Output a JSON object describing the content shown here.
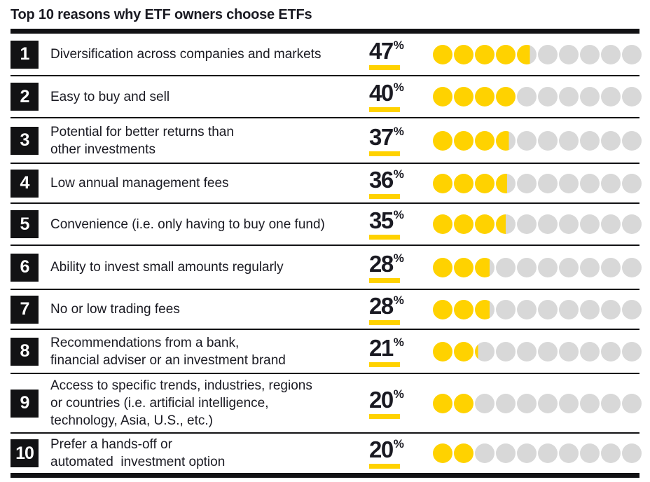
{
  "title": "Top 10 reasons why ETF owners choose ETFs",
  "unit": "%",
  "colors": {
    "accent_yellow": "#FFD200",
    "dot_gray": "#D8D8D8",
    "ink_black": "#121214",
    "text_black": "#1A1A22"
  },
  "gauge": {
    "dots_total": 10,
    "percent_per_dot": 10
  },
  "rows": [
    {
      "rank": 1,
      "label": "Diversification across companies and markets",
      "value": 47
    },
    {
      "rank": 2,
      "label": "Easy to buy and sell",
      "value": 40
    },
    {
      "rank": 3,
      "label": "Potential for better returns than\nother investments",
      "value": 37
    },
    {
      "rank": 4,
      "label": "Low annual management fees",
      "value": 36
    },
    {
      "rank": 5,
      "label": "Convenience (i.e. only having to buy one fund)",
      "value": 35
    },
    {
      "rank": 6,
      "label": "Ability to invest small amounts regularly",
      "value": 28
    },
    {
      "rank": 7,
      "label": "No or low trading fees",
      "value": 28
    },
    {
      "rank": 8,
      "label": "Recommendations from a bank,\nfinancial adviser or an investment brand",
      "value": 21
    },
    {
      "rank": 9,
      "label": "Access to specific trends, industries, regions\nor countries (i.e. artificial intelligence,\ntechnology, Asia, U.S., etc.)",
      "value": 20
    },
    {
      "rank": 10,
      "label": "Prefer a hands-off or\nautomated  investment option",
      "value": 20
    }
  ],
  "chart_data": {
    "type": "bar",
    "variant": "dot-pictograph",
    "title": "Top 10 reasons why ETF owners choose ETFs",
    "categories": [
      "Diversification across companies and markets",
      "Easy to buy and sell",
      "Potential for better returns than other investments",
      "Low annual management fees",
      "Convenience (i.e. only having to buy one fund)",
      "Ability to invest small amounts regularly",
      "No or low trading fees",
      "Recommendations from a bank, financial adviser or an investment brand",
      "Access to specific trends, industries, regions or countries (i.e. artificial intelligence, technology, Asia, U.S., etc.)",
      "Prefer a hands-off or automated investment option"
    ],
    "values": [
      47,
      40,
      37,
      36,
      35,
      28,
      28,
      21,
      20,
      20
    ],
    "unit": "%",
    "xlim": [
      0,
      100
    ],
    "dots_per_row": 10,
    "percent_per_dot": 10,
    "legend": "off",
    "grid": "off"
  }
}
